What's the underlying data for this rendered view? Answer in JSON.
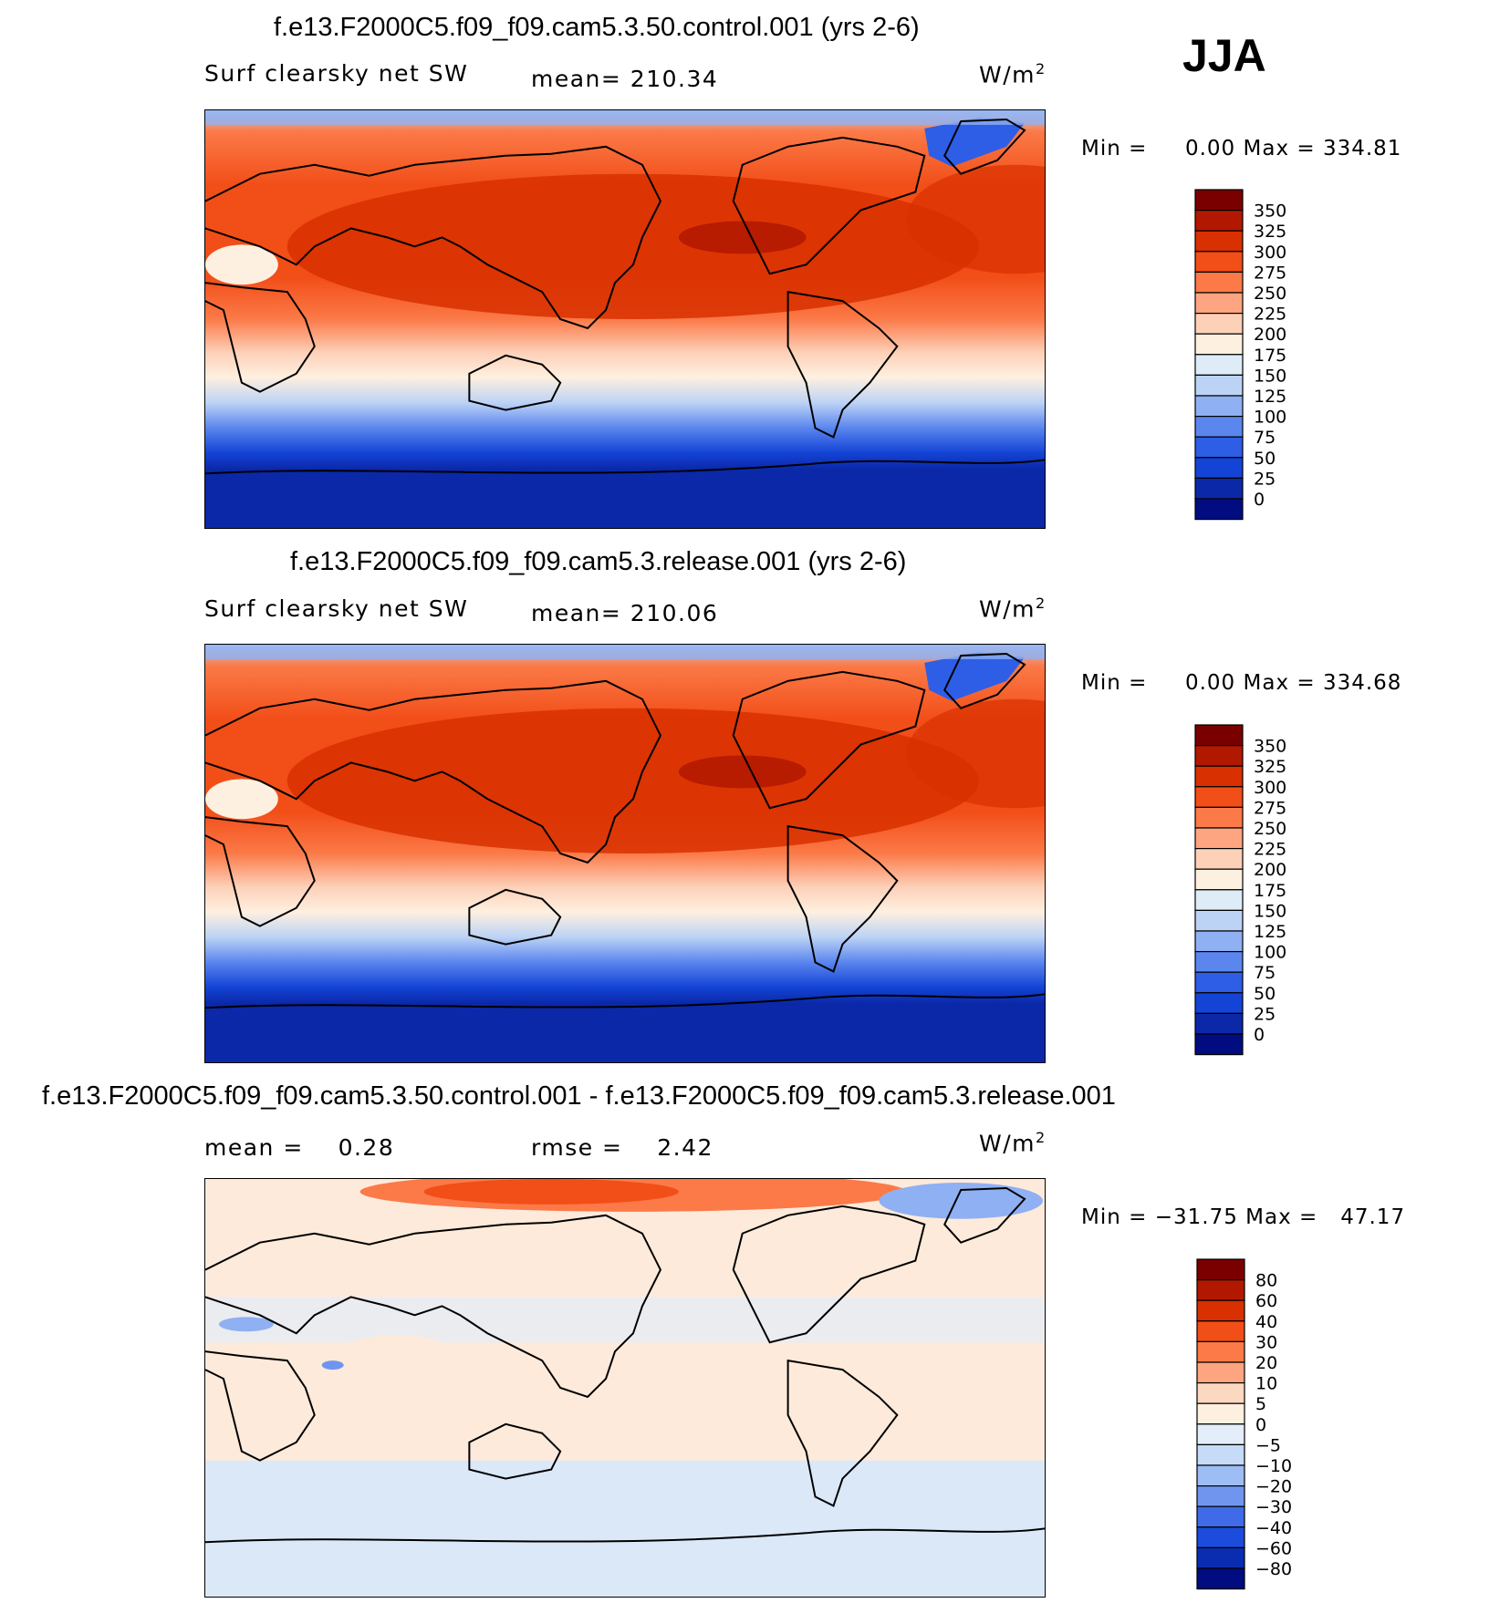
{
  "season": "JJA",
  "panels": [
    {
      "title": "f.e13.F2000C5.f09_f09.cam5.3.50.control.001 (yrs 2-6)",
      "left_label": "Surf clearsky net SW",
      "center_label": "mean= 210.34",
      "units": "W/m",
      "units_sup": "2",
      "min_label": "Min =",
      "min_value": "0.00",
      "max_label": "Max =",
      "max_value": "334.81",
      "colorbar": {
        "labels": [
          "350",
          "325",
          "300",
          "275",
          "250",
          "225",
          "200",
          "175",
          "150",
          "125",
          "100",
          "75",
          "50",
          "25",
          "0"
        ],
        "colors": [
          "#7a0000",
          "#b21800",
          "#d83000",
          "#f24e18",
          "#fb7a48",
          "#fca580",
          "#fdd0b8",
          "#fef0e0",
          "#deecf8",
          "#bcd3f5",
          "#8fb0f2",
          "#5b86ee",
          "#2e5ee6",
          "#1444d6",
          "#0a28a8",
          "#000c80"
        ]
      }
    },
    {
      "title": "f.e13.F2000C5.f09_f09.cam5.3.release.001 (yrs 2-6)",
      "left_label": "Surf clearsky net SW",
      "center_label": "mean= 210.06",
      "units": "W/m",
      "units_sup": "2",
      "min_label": "Min =",
      "min_value": "0.00",
      "max_label": "Max =",
      "max_value": "334.68",
      "colorbar": {
        "labels": [
          "350",
          "325",
          "300",
          "275",
          "250",
          "225",
          "200",
          "175",
          "150",
          "125",
          "100",
          "75",
          "50",
          "25",
          "0"
        ],
        "colors": [
          "#7a0000",
          "#b21800",
          "#d83000",
          "#f24e18",
          "#fb7a48",
          "#fca580",
          "#fdd0b8",
          "#fef0e0",
          "#deecf8",
          "#bcd3f5",
          "#8fb0f2",
          "#5b86ee",
          "#2e5ee6",
          "#1444d6",
          "#0a28a8",
          "#000c80"
        ]
      }
    },
    {
      "title": "f.e13.F2000C5.f09_f09.cam5.3.50.control.001 - f.e13.F2000C5.f09_f09.cam5.3.release.001",
      "left_label": "mean =    0.28",
      "center_label": "rmse =    2.42",
      "units": "W/m",
      "units_sup": "2",
      "min_label": "Min =",
      "min_value": "−31.75",
      "max_label": "Max =",
      "max_value": "47.17",
      "colorbar": {
        "labels": [
          "80",
          "60",
          "40",
          "30",
          "20",
          "10",
          "5",
          "0",
          "−5",
          "−10",
          "−20",
          "−30",
          "−40",
          "−60",
          "−80"
        ],
        "colors": [
          "#7a0000",
          "#b21800",
          "#d83000",
          "#f24e18",
          "#fb7a48",
          "#fca580",
          "#fdd8c0",
          "#fef0e0",
          "#e4eefa",
          "#c6dbf7",
          "#9ebdf4",
          "#6f95ef",
          "#3f6be8",
          "#1c4cdc",
          "#0a2cb0",
          "#000c80"
        ]
      }
    }
  ]
}
